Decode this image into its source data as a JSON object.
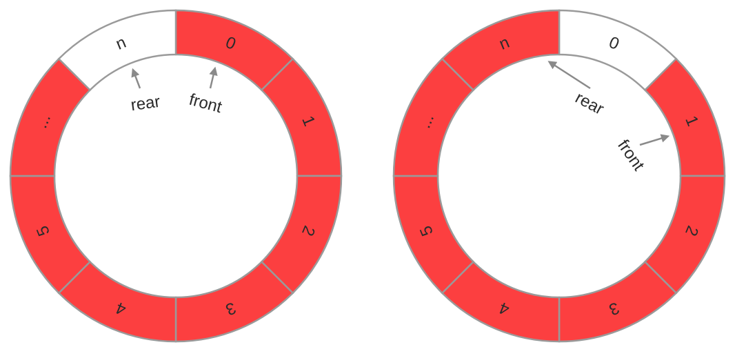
{
  "colors": {
    "filled": "#fc3f40",
    "empty": "#ffffff",
    "stroke": "#9a9a9a",
    "arrow": "#8a8a8a",
    "text": "#2b2b2b"
  },
  "rings": [
    {
      "name": "ring-left",
      "segments": [
        {
          "label": "0",
          "filled": true
        },
        {
          "label": "1",
          "filled": true
        },
        {
          "label": "2",
          "filled": true
        },
        {
          "label": "3",
          "filled": true
        },
        {
          "label": "4",
          "filled": true
        },
        {
          "label": "5",
          "filled": true
        },
        {
          "label": "...",
          "filled": true
        },
        {
          "label": "n",
          "filled": false
        }
      ],
      "pointers": [
        {
          "label": "rear",
          "segment_index": 7
        },
        {
          "label": "front",
          "segment_index": 0
        }
      ]
    },
    {
      "name": "ring-right",
      "segments": [
        {
          "label": "0",
          "filled": false
        },
        {
          "label": "1",
          "filled": true
        },
        {
          "label": "2",
          "filled": true
        },
        {
          "label": "3",
          "filled": true
        },
        {
          "label": "4",
          "filled": true
        },
        {
          "label": "5",
          "filled": true
        },
        {
          "label": "...",
          "filled": true
        },
        {
          "label": "n",
          "filled": true
        }
      ],
      "pointers": [
        {
          "label": "rear",
          "segment_index": 0
        },
        {
          "label": "front",
          "segment_index": 1
        }
      ]
    }
  ]
}
